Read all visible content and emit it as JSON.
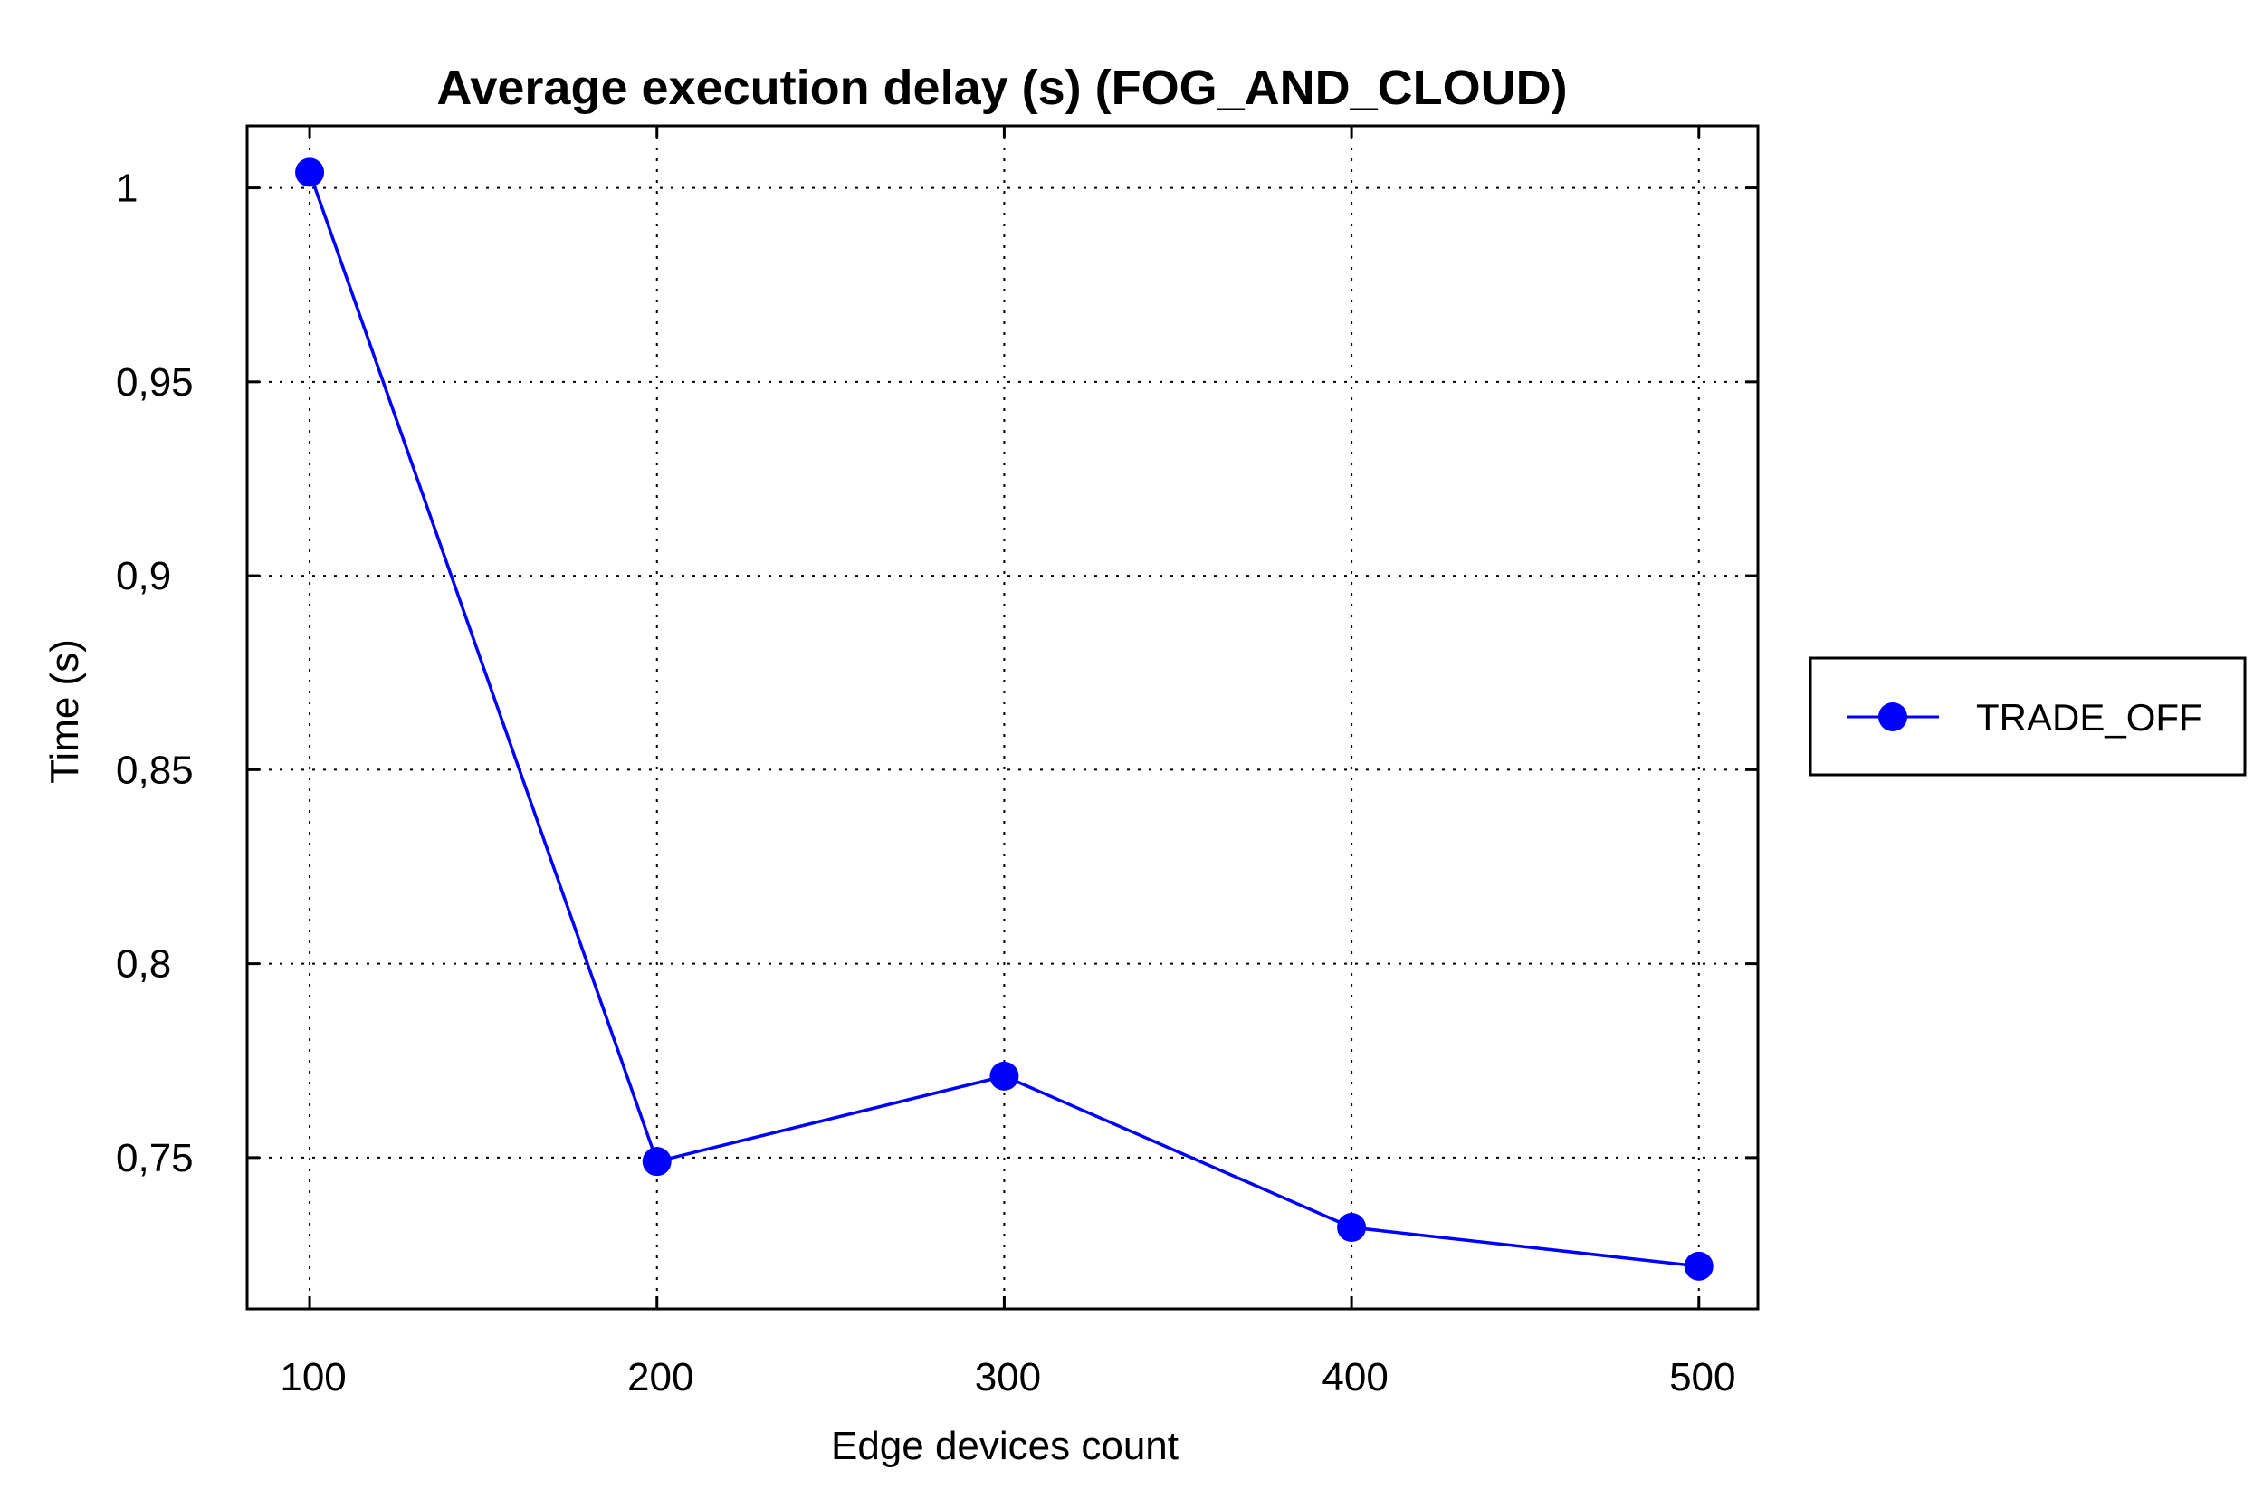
{
  "chart_data": {
    "type": "line",
    "title": "Average execution delay (s) (FOG_AND_CLOUD)",
    "xlabel": "Edge devices count",
    "ylabel": "Time (s)",
    "x": [
      100,
      200,
      300,
      400,
      500
    ],
    "x_tick_labels": [
      "100",
      "200",
      "300",
      "400",
      "500"
    ],
    "y_ticks": [
      0.75,
      0.8,
      0.85,
      0.9,
      0.95,
      1
    ],
    "y_tick_labels": [
      "0,75",
      "0,8",
      "0,85",
      "0,9",
      "0,95",
      "1"
    ],
    "xlim": [
      82,
      517
    ],
    "ylim": [
      0.711,
      1.016
    ],
    "grid": true,
    "legend_position": "right",
    "series": [
      {
        "name": "TRADE_OFF",
        "color": "#0000ff",
        "marker": "circle",
        "values": [
          1.004,
          0.749,
          0.771,
          0.732,
          0.722
        ]
      }
    ]
  }
}
